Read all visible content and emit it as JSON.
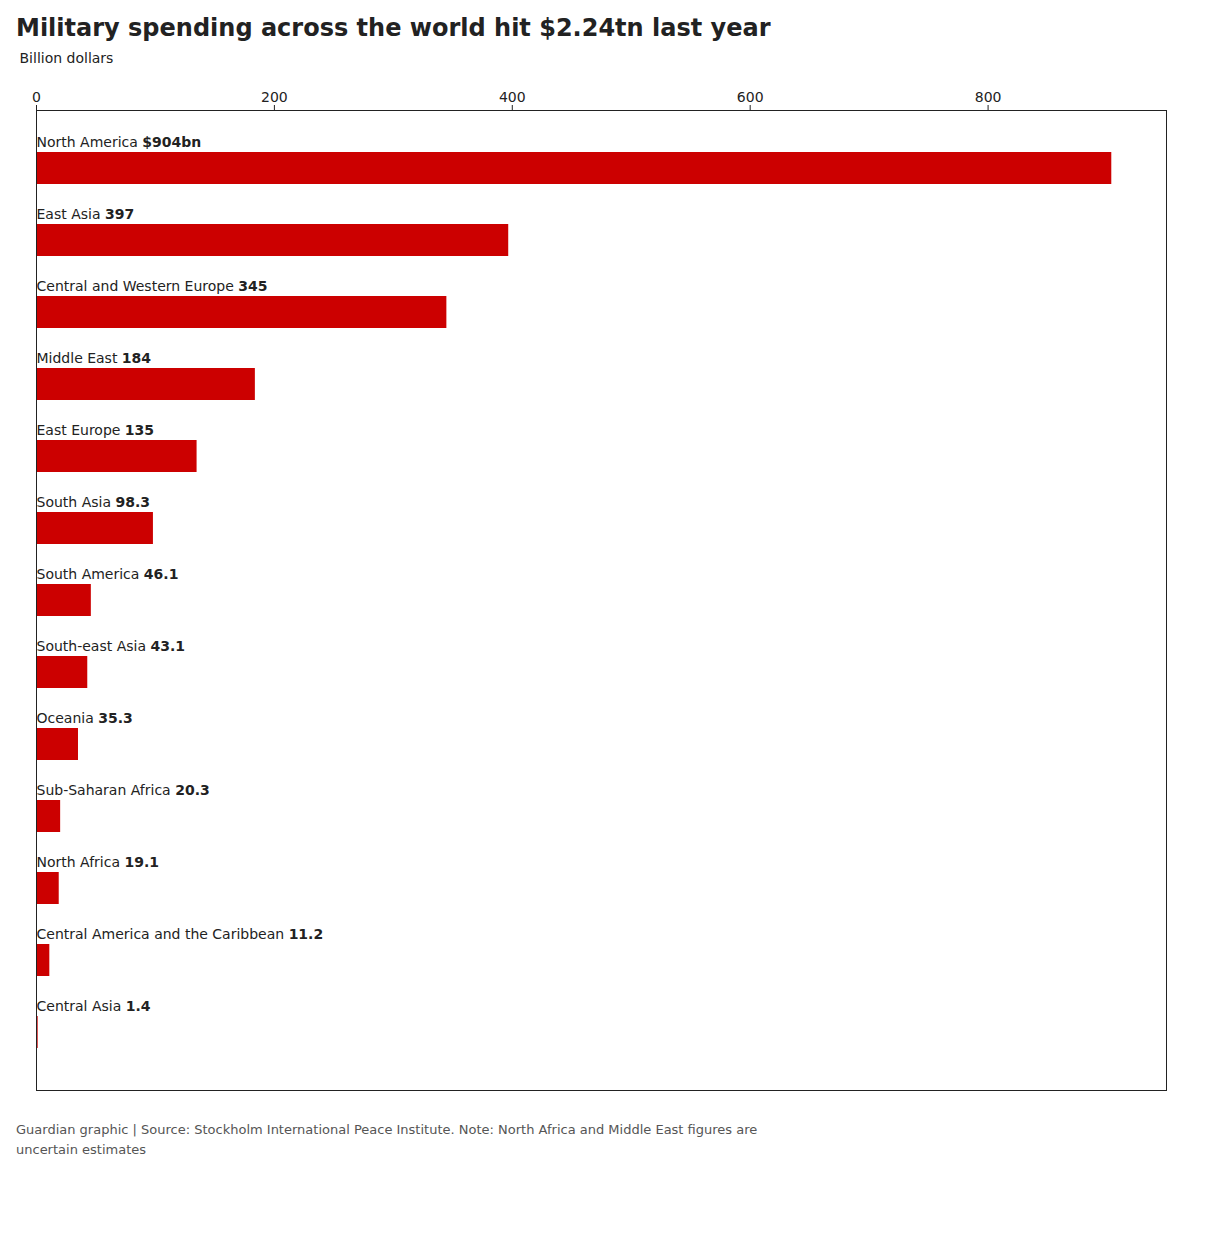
{
  "chart_data": {
    "type": "bar",
    "orientation": "horizontal",
    "title": "Military spending across the world hit $2.24tn last year",
    "xlabel": "Billion dollars",
    "caption": "Guardian graphic | Source: Stockholm International Peace Institute. Note: North Africa and Middle East figures are\nuncertain estimates",
    "categories": [
      "North America",
      "East Asia",
      "Central and Western Europe",
      "Middle East",
      "East Europe",
      "South Asia",
      "South America",
      "South-east Asia",
      "Oceania",
      "Sub-Saharan Africa",
      "North Africa",
      "Central America and the Caribbean",
      "Central Asia"
    ],
    "values": [
      904,
      397,
      345,
      184,
      135,
      98.3,
      46.1,
      43.1,
      35.3,
      20.3,
      19.1,
      11.2,
      1.4
    ],
    "value_labels": [
      "$904bn",
      "397",
      "345",
      "184",
      "135",
      "98.3",
      "46.1",
      "43.1",
      "35.3",
      "20.3",
      "19.1",
      "11.2",
      "1.4"
    ],
    "data_labels": true,
    "color": "#cc0000",
    "xlim": [
      0,
      950
    ],
    "xticks": [
      0,
      200,
      400,
      600,
      800
    ],
    "tick_labels": "x"
  }
}
